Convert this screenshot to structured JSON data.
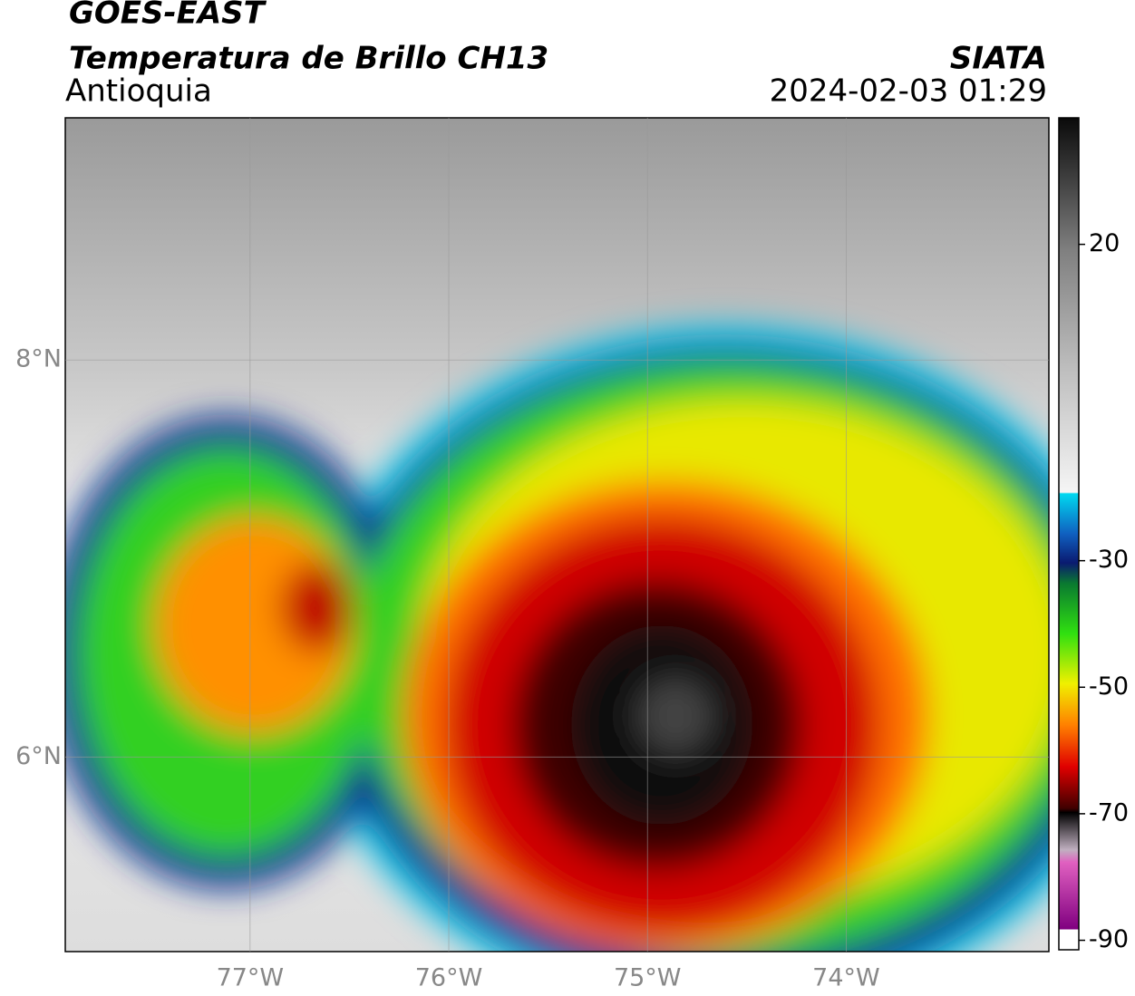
{
  "header": {
    "title": "GOES-EAST",
    "subtitle": "Temperatura de Brillo CH13",
    "region": "Antioquia",
    "source": "SIATA",
    "timestamp": "2024-02-03 01:29"
  },
  "map": {
    "xlim": [
      -77.93,
      -72.98
    ],
    "ylim": [
      5.02,
      9.22
    ],
    "xticks": [
      {
        "value": -77,
        "label": "77°W"
      },
      {
        "value": -76,
        "label": "76°W"
      },
      {
        "value": -75,
        "label": "75°W"
      },
      {
        "value": -74,
        "label": "74°W"
      }
    ],
    "yticks": [
      {
        "value": 8,
        "label": "8°N"
      },
      {
        "value": 6,
        "label": "6°N"
      }
    ],
    "grid": true
  },
  "colorbar": {
    "lim": [
      -91.5,
      40
    ],
    "ticks": [
      20,
      -30,
      -50,
      -70,
      -90
    ]
  }
}
